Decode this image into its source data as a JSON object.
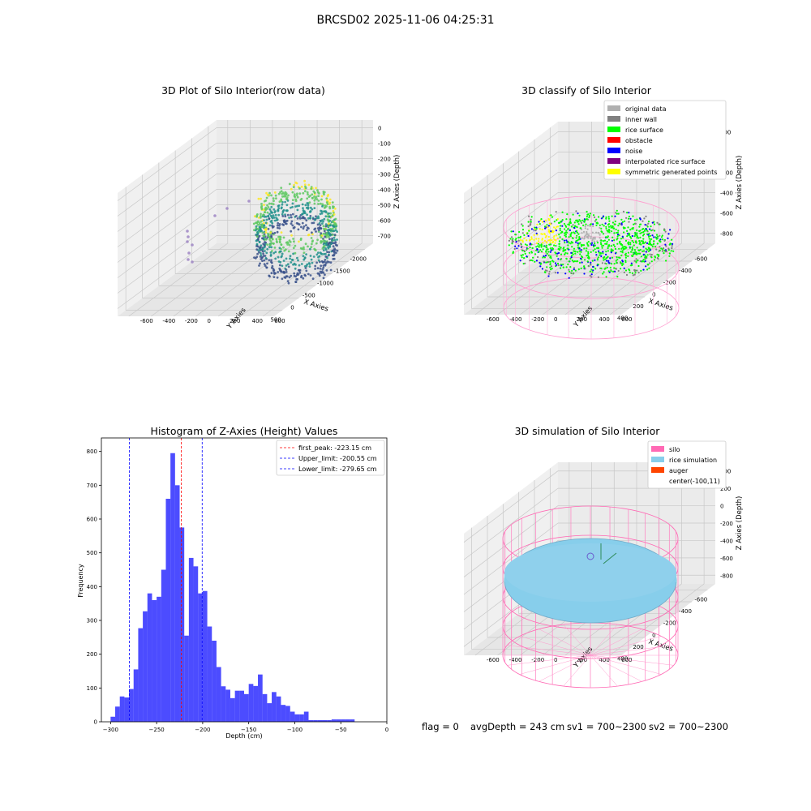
{
  "figure": {
    "title": "BRCSD02 2025-11-06 04:25:31",
    "status": {
      "flag": "flag = 0",
      "avg_depth": "avgDepth = 243 cm",
      "sv1": "sv1 = 700~2300",
      "sv2": "sv2 = 700~2300"
    }
  },
  "chart_data": [
    {
      "type": "scatter3d",
      "title": "3D Plot of Silo Interior(row data)",
      "xlabel": "X Axies",
      "ylabel": "Y Axies",
      "zlabel": "Z Axies (Depth)",
      "x_ticks": [
        "-2000",
        "-1500",
        "-1000",
        "-500",
        "0",
        "500"
      ],
      "y_ticks": [
        "-600",
        "-400",
        "-200",
        "0",
        "200",
        "400",
        "600"
      ],
      "z_ticks": [
        "0",
        "-100",
        "-200",
        "-300",
        "-400",
        "-500",
        "-600",
        "-700"
      ],
      "xlim": [
        -2200,
        600
      ],
      "ylim": [
        -650,
        650
      ],
      "zlim": [
        -720,
        20
      ],
      "colormap": [
        "#440154",
        "#3b528b",
        "#21918c",
        "#5ec962",
        "#fde725"
      ],
      "grid": true
    },
    {
      "type": "scatter3d",
      "title": "3D classify of Silo Interior",
      "xlabel": "X Axies",
      "ylabel": "Y Axies",
      "zlabel": "Z Axies (Depth)",
      "x_ticks": [
        "-600",
        "-400",
        "-200",
        "0",
        "200",
        "400"
      ],
      "y_ticks": [
        "-600",
        "-400",
        "-200",
        "0",
        "200",
        "400",
        "600"
      ],
      "z_ticks": [
        "200",
        "0",
        "-200",
        "-400",
        "-600",
        "-800"
      ],
      "legend_position": "upper-right",
      "legend": [
        {
          "label": "original data",
          "color": "#b0b0b0"
        },
        {
          "label": "inner wall",
          "color": "#808080"
        },
        {
          "label": "rice surface",
          "color": "#00ff00"
        },
        {
          "label": "obstacle",
          "color": "#ff0000"
        },
        {
          "label": "noise",
          "color": "#0000ff"
        },
        {
          "label": "interpolated rice surface",
          "color": "#800080"
        },
        {
          "label": "symmetric generated points",
          "color": "#ffff00"
        }
      ],
      "grid": true
    },
    {
      "type": "histogram",
      "title": "Histogram of Z-Axies (Height) Values",
      "xlabel": "Depth (cm)",
      "ylabel": "Frequency",
      "xlim": [
        -310,
        0
      ],
      "ylim": [
        0,
        840
      ],
      "x_ticks": [
        -300,
        -250,
        -200,
        -150,
        -100,
        -50,
        0
      ],
      "y_ticks": [
        0,
        100,
        200,
        300,
        400,
        500,
        600,
        700,
        800
      ],
      "bar_color": "#0000ff",
      "bin_width": 5,
      "bin_start": -300,
      "counts": [
        15,
        45,
        75,
        72,
        97,
        155,
        277,
        327,
        380,
        360,
        370,
        450,
        660,
        795,
        700,
        575,
        255,
        485,
        460,
        380,
        387,
        282,
        240,
        162,
        105,
        95,
        70,
        92,
        92,
        82,
        112,
        106,
        140,
        82,
        55,
        88,
        75,
        50,
        47,
        30,
        22,
        22,
        30,
        5,
        5,
        5,
        5,
        5,
        7,
        7,
        7,
        7,
        7
      ],
      "vlines": [
        {
          "label": "first_peak: -223.15 cm",
          "x": -223.15,
          "color": "#ff0000"
        },
        {
          "label": "Upper_limit: -200.55 cm",
          "x": -200.55,
          "color": "#0000ff"
        },
        {
          "label": "Lower_limit: -279.65 cm",
          "x": -279.65,
          "color": "#0000ff"
        }
      ],
      "legend_position": "upper-right"
    },
    {
      "type": "surface3d",
      "title": "3D simulation of Silo Interior",
      "xlabel": "X Axies",
      "ylabel": "Y Axies",
      "zlabel": "Z Axies (Depth)",
      "x_ticks": [
        "-600",
        "-400",
        "-200",
        "0",
        "200",
        "400"
      ],
      "y_ticks": [
        "-600",
        "-400",
        "-200",
        "0",
        "200",
        "400",
        "600"
      ],
      "z_ticks": [
        "400",
        "200",
        "0",
        "-200",
        "-400",
        "-600",
        "-800"
      ],
      "legend_position": "upper-right",
      "legend": [
        {
          "label": "silo",
          "color": "#ff69b4"
        },
        {
          "label": "rice simulation",
          "color": "#87ceeb"
        },
        {
          "label": "auger",
          "color": "#ff4500"
        },
        {
          "label": "center(-100,11)",
          "color": "#ffffff"
        }
      ],
      "grid": true
    }
  ]
}
